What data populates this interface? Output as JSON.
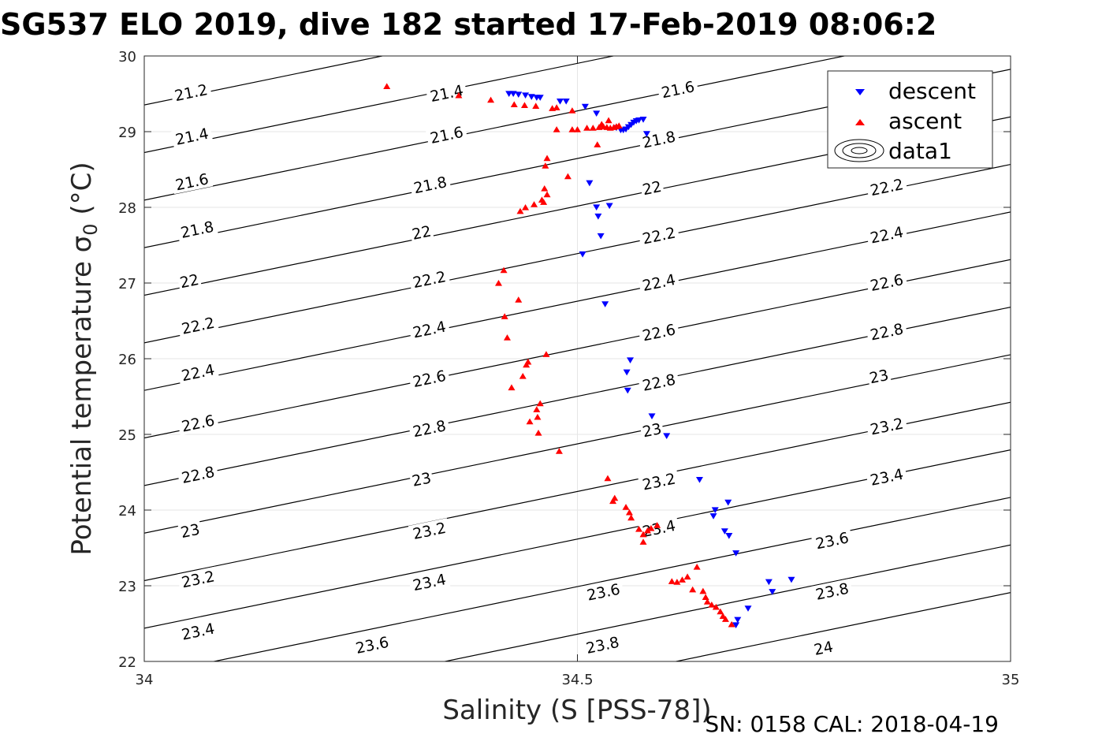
{
  "chart_data": {
    "type": "scatter",
    "title": "SG537 ELO 2019, dive 182 started 17-Feb-2019 08:06:2",
    "xlabel": "Salinity (S [PSS-78])",
    "ylabel": "Potential temperature σ",
    "ylabel_sub": "0",
    "ylabel_unit": " (°C)",
    "xlim": [
      34,
      35
    ],
    "ylim": [
      22,
      30
    ],
    "xticks": [
      "34",
      "34.5",
      "35"
    ],
    "yticks": [
      "22",
      "23",
      "24",
      "25",
      "26",
      "27",
      "28",
      "29",
      "30"
    ],
    "grid": true,
    "legend_position": "top-right",
    "legend": [
      "descent",
      "ascent",
      "data1"
    ],
    "footnote": "SN: 0158  CAL: 2018-04-19",
    "colors": {
      "descent": "#0000ff",
      "ascent": "#ff0000",
      "contour": "#000000"
    },
    "contours": {
      "levels": [
        "21.2",
        "21.4",
        "21.6",
        "21.8",
        "22",
        "22.2",
        "22.4",
        "22.6",
        "22.8",
        "23",
        "23.2",
        "23.4",
        "23.6",
        "23.8",
        "24"
      ],
      "density_model": {
        "S0": 34.5,
        "T0": 25,
        "sigma0": 22.96,
        "alpha": 0.3182,
        "beta": 0.75
      },
      "label_placements": [
        {
          "text": "21.2",
          "s": 34.054,
          "t": 29.52
        },
        {
          "text": "21.4",
          "s": 34.055,
          "t": 28.94
        },
        {
          "text": "21.6",
          "s": 34.055,
          "t": 28.34
        },
        {
          "text": "21.8",
          "s": 34.061,
          "t": 27.71
        },
        {
          "text": "22",
          "s": 34.052,
          "t": 27.03
        },
        {
          "text": "22.2",
          "s": 34.062,
          "t": 26.44
        },
        {
          "text": "22.4",
          "s": 34.062,
          "t": 25.82
        },
        {
          "text": "22.6",
          "s": 34.062,
          "t": 25.15
        },
        {
          "text": "22.8",
          "s": 34.062,
          "t": 24.47
        },
        {
          "text": "23",
          "s": 34.053,
          "t": 23.73
        },
        {
          "text": "23.2",
          "s": 34.062,
          "t": 23.09
        },
        {
          "text": "23.4",
          "s": 34.062,
          "t": 22.4
        },
        {
          "text": "21.4",
          "s": 34.349,
          "t": 29.51
        },
        {
          "text": "21.6",
          "s": 34.349,
          "t": 28.96
        },
        {
          "text": "21.8",
          "s": 34.33,
          "t": 28.3
        },
        {
          "text": "22",
          "s": 34.32,
          "t": 27.67
        },
        {
          "text": "22.2",
          "s": 34.329,
          "t": 27.05
        },
        {
          "text": "22.4",
          "s": 34.329,
          "t": 26.39
        },
        {
          "text": "22.6",
          "s": 34.329,
          "t": 25.74
        },
        {
          "text": "22.8",
          "s": 34.329,
          "t": 25.08
        },
        {
          "text": "23",
          "s": 34.32,
          "t": 24.41
        },
        {
          "text": "23.2",
          "s": 34.329,
          "t": 23.73
        },
        {
          "text": "23.4",
          "s": 34.329,
          "t": 23.05
        },
        {
          "text": "23.6",
          "s": 34.263,
          "t": 22.22
        },
        {
          "text": "21.6",
          "s": 34.616,
          "t": 29.56
        },
        {
          "text": "21.8",
          "s": 34.594,
          "t": 28.9
        },
        {
          "text": "22",
          "s": 34.586,
          "t": 28.26
        },
        {
          "text": "22.2",
          "s": 34.594,
          "t": 27.63
        },
        {
          "text": "22.4",
          "s": 34.594,
          "t": 27.01
        },
        {
          "text": "22.6",
          "s": 34.594,
          "t": 26.35
        },
        {
          "text": "22.8",
          "s": 34.594,
          "t": 25.69
        },
        {
          "text": "23",
          "s": 34.586,
          "t": 25.06
        },
        {
          "text": "23.2",
          "s": 34.594,
          "t": 24.38
        },
        {
          "text": "23.4",
          "s": 34.594,
          "t": 23.76
        },
        {
          "text": "23.6",
          "s": 34.53,
          "t": 22.92
        },
        {
          "text": "23.8",
          "s": 34.529,
          "t": 22.22
        },
        {
          "text": "22.2",
          "s": 34.857,
          "t": 28.27
        },
        {
          "text": "22.4",
          "s": 34.857,
          "t": 27.64
        },
        {
          "text": "22.6",
          "s": 34.857,
          "t": 27.01
        },
        {
          "text": "22.8",
          "s": 34.857,
          "t": 26.36
        },
        {
          "text": "23",
          "s": 34.848,
          "t": 25.77
        },
        {
          "text": "23.2",
          "s": 34.857,
          "t": 25.11
        },
        {
          "text": "23.4",
          "s": 34.857,
          "t": 24.44
        },
        {
          "text": "23.6",
          "s": 34.794,
          "t": 23.6
        },
        {
          "text": "23.8",
          "s": 34.794,
          "t": 22.93
        },
        {
          "text": "24",
          "s": 34.784,
          "t": 22.18
        }
      ]
    },
    "series": [
      {
        "name": "descent",
        "marker": "triangle-down",
        "points": [
          [
            34.421,
            29.5
          ],
          [
            34.426,
            29.5
          ],
          [
            34.432,
            29.49
          ],
          [
            34.44,
            29.48
          ],
          [
            34.447,
            29.46
          ],
          [
            34.453,
            29.45
          ],
          [
            34.457,
            29.45
          ],
          [
            34.48,
            29.4
          ],
          [
            34.487,
            29.4
          ],
          [
            34.509,
            29.33
          ],
          [
            34.522,
            29.24
          ],
          [
            34.545,
            29.05
          ],
          [
            34.55,
            29.02
          ],
          [
            34.553,
            29.02
          ],
          [
            34.556,
            29.03
          ],
          [
            34.559,
            29.06
          ],
          [
            34.562,
            29.09
          ],
          [
            34.565,
            29.12
          ],
          [
            34.568,
            29.14
          ],
          [
            34.571,
            29.15
          ],
          [
            34.576,
            29.16
          ],
          [
            34.58,
            28.97
          ],
          [
            34.514,
            28.32
          ],
          [
            34.522,
            28.0
          ],
          [
            34.537,
            28.02
          ],
          [
            34.524,
            27.88
          ],
          [
            34.527,
            27.62
          ],
          [
            34.506,
            27.38
          ],
          [
            34.532,
            26.72
          ],
          [
            34.561,
            25.98
          ],
          [
            34.557,
            25.82
          ],
          [
            34.558,
            25.58
          ],
          [
            34.586,
            25.24
          ],
          [
            34.603,
            24.98
          ],
          [
            34.641,
            24.4
          ],
          [
            34.674,
            24.1
          ],
          [
            34.659,
            24.0
          ],
          [
            34.657,
            23.92
          ],
          [
            34.67,
            23.72
          ],
          [
            34.675,
            23.66
          ],
          [
            34.683,
            23.43
          ],
          [
            34.721,
            23.05
          ],
          [
            34.725,
            22.92
          ],
          [
            34.747,
            23.08
          ],
          [
            34.697,
            22.7
          ],
          [
            34.685,
            22.55
          ],
          [
            34.683,
            22.48
          ]
        ]
      },
      {
        "name": "ascent",
        "marker": "triangle-up",
        "points": [
          [
            34.28,
            29.6
          ],
          [
            34.363,
            29.48
          ],
          [
            34.4,
            29.42
          ],
          [
            34.427,
            29.36
          ],
          [
            34.439,
            29.35
          ],
          [
            34.452,
            29.34
          ],
          [
            34.471,
            29.31
          ],
          [
            34.476,
            29.32
          ],
          [
            34.494,
            29.28
          ],
          [
            34.511,
            29.05
          ],
          [
            34.518,
            29.05
          ],
          [
            34.525,
            29.06
          ],
          [
            34.53,
            29.07
          ],
          [
            34.534,
            29.06
          ],
          [
            34.538,
            29.05
          ],
          [
            34.542,
            29.06
          ],
          [
            34.545,
            29.07
          ],
          [
            34.548,
            29.08
          ],
          [
            34.536,
            29.15
          ],
          [
            34.528,
            29.1
          ],
          [
            34.476,
            29.03
          ],
          [
            34.494,
            29.03
          ],
          [
            34.5,
            29.03
          ],
          [
            34.523,
            28.83
          ],
          [
            34.465,
            28.65
          ],
          [
            34.463,
            28.55
          ],
          [
            34.489,
            28.41
          ],
          [
            34.462,
            28.25
          ],
          [
            34.465,
            28.17
          ],
          [
            34.459,
            28.1
          ],
          [
            34.461,
            28.07
          ],
          [
            34.45,
            28.04
          ],
          [
            34.44,
            28.0
          ],
          [
            34.434,
            27.95
          ],
          [
            34.415,
            27.17
          ],
          [
            34.409,
            27.0
          ],
          [
            34.432,
            26.78
          ],
          [
            34.416,
            26.56
          ],
          [
            34.419,
            26.28
          ],
          [
            34.464,
            26.06
          ],
          [
            34.443,
            25.96
          ],
          [
            34.441,
            25.92
          ],
          [
            34.437,
            25.77
          ],
          [
            34.424,
            25.62
          ],
          [
            34.457,
            25.41
          ],
          [
            34.453,
            25.33
          ],
          [
            34.454,
            25.23
          ],
          [
            34.445,
            25.17
          ],
          [
            34.455,
            25.02
          ],
          [
            34.479,
            24.78
          ],
          [
            34.535,
            24.42
          ],
          [
            34.543,
            24.16
          ],
          [
            34.541,
            24.12
          ],
          [
            34.556,
            24.04
          ],
          [
            34.56,
            23.97
          ],
          [
            34.562,
            23.9
          ],
          [
            34.571,
            23.75
          ],
          [
            34.576,
            23.68
          ],
          [
            34.581,
            23.73
          ],
          [
            34.585,
            23.76
          ],
          [
            34.592,
            23.8
          ],
          [
            34.576,
            23.58
          ],
          [
            34.609,
            23.06
          ],
          [
            34.615,
            23.05
          ],
          [
            34.621,
            23.08
          ],
          [
            34.627,
            23.12
          ],
          [
            34.638,
            23.25
          ],
          [
            34.645,
            22.93
          ],
          [
            34.648,
            22.85
          ],
          [
            34.65,
            22.79
          ],
          [
            34.655,
            22.75
          ],
          [
            34.66,
            22.72
          ],
          [
            34.665,
            22.66
          ],
          [
            34.668,
            22.6
          ],
          [
            34.671,
            22.56
          ],
          [
            34.678,
            22.49
          ],
          [
            34.633,
            22.95
          ]
        ]
      },
      {
        "name": "data1",
        "marker": "contour",
        "points": []
      }
    ]
  }
}
